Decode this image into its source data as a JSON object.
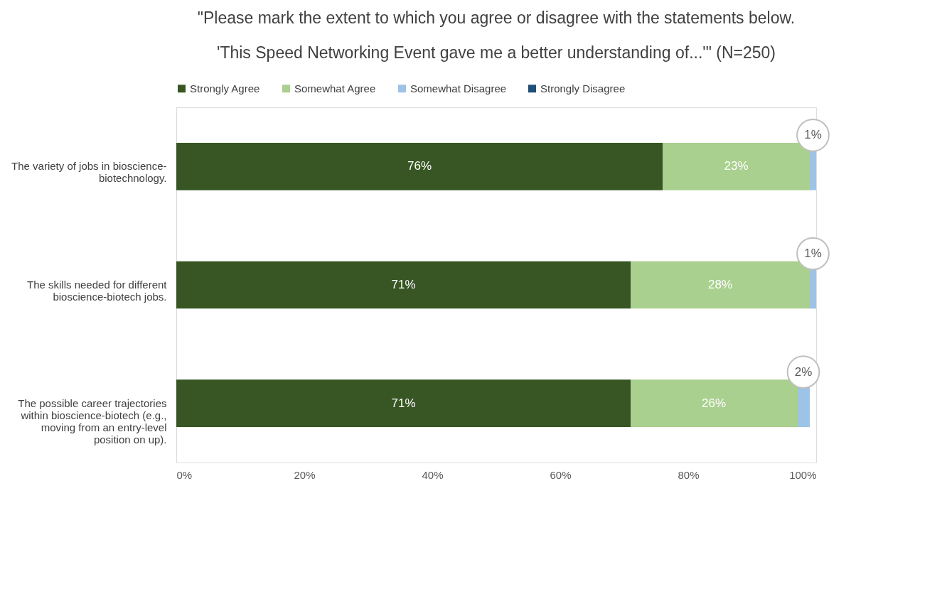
{
  "chart_data": {
    "type": "bar",
    "orientation": "horizontal",
    "stacked": true,
    "title": "\"Please mark the extent to which you agree or disagree with the statements below.",
    "subtitle": "'This Speed Networking Event gave me a better understanding of...'\" (N=250)",
    "categories": [
      "The variety of jobs in bioscience-biotechnology.",
      "The skills needed for different bioscience-biotech jobs.",
      "The possible career trajectories within bioscience-biotech (e.g., moving from an entry-level position on up)."
    ],
    "series": [
      {
        "name": "Strongly Agree",
        "color": "#375623",
        "values": [
          76,
          71,
          71
        ],
        "value_labels": [
          "76%",
          "71%",
          "71%"
        ]
      },
      {
        "name": "Somewhat Agree",
        "color": "#a9d08e",
        "values": [
          23,
          28,
          26
        ],
        "value_labels": [
          "23%",
          "28%",
          "26%"
        ]
      },
      {
        "name": "Somewhat Disagree",
        "color": "#9dc3e6",
        "values": [
          1,
          1,
          2
        ],
        "value_labels": [
          "1%",
          "1%",
          "2%"
        ]
      },
      {
        "name": "Strongly Disagree",
        "color": "#1f4e79",
        "values": [
          null,
          null,
          null
        ]
      }
    ],
    "xlim": [
      0,
      100
    ],
    "xticks": [
      {
        "value": 0,
        "label": "0%"
      },
      {
        "value": 20,
        "label": "20%"
      },
      {
        "value": 40,
        "label": "40%"
      },
      {
        "value": 60,
        "label": "60%"
      },
      {
        "value": 80,
        "label": "80%"
      },
      {
        "value": 100,
        "label": "100%"
      }
    ],
    "legend": "top",
    "grid": false
  }
}
